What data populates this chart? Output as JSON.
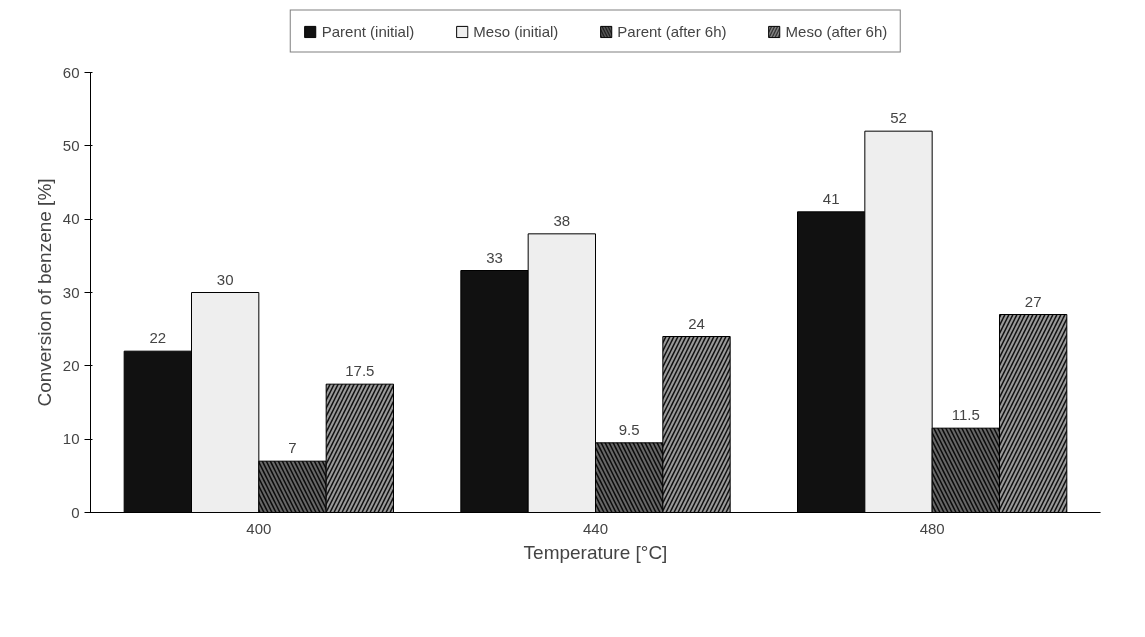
{
  "chart_data": {
    "type": "bar",
    "xlabel": "Temperature [°C]",
    "ylabel": "Conversion of benzene [%]",
    "categories": [
      "400",
      "440",
      "480"
    ],
    "series": [
      {
        "name": "Parent (initial)",
        "color": "#111111",
        "values": [
          22,
          33,
          41
        ]
      },
      {
        "name": "Meso (initial)",
        "color": "#eeeeee",
        "values": [
          30,
          38,
          52
        ]
      },
      {
        "name": "Parent (after 6h)",
        "color": "#666666",
        "values": [
          7,
          9.5,
          11.5
        ]
      },
      {
        "name": "Meso (after 6h)",
        "color": "#999999",
        "values": [
          17.5,
          24,
          27
        ]
      }
    ],
    "ylim": [
      0,
      60
    ],
    "yticks": [
      0,
      10,
      20,
      30,
      40,
      50,
      60
    ],
    "data_labels": true,
    "legend": "top",
    "grid": false
  }
}
